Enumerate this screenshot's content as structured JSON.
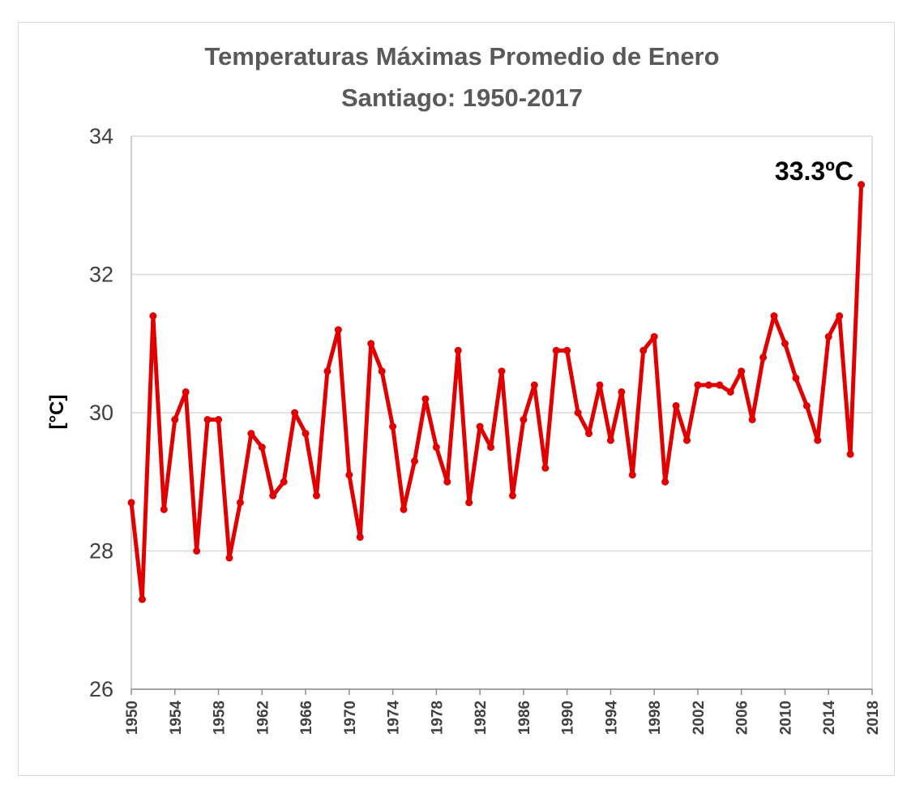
{
  "chart_data": {
    "type": "line",
    "title_line1": "Temperaturas Máximas Promedio de Enero",
    "title_line2": "Santiago: 1950-2017",
    "ylabel": "[°C]",
    "xlabel": "",
    "ylim": [
      26,
      34
    ],
    "yticks": [
      "26",
      "28",
      "30",
      "32",
      "34"
    ],
    "xlim": [
      1950,
      2018
    ],
    "xticks": [
      "1950",
      "1954",
      "1958",
      "1962",
      "1966",
      "1970",
      "1974",
      "1978",
      "1982",
      "1986",
      "1990",
      "1994",
      "1998",
      "2002",
      "2006",
      "2010",
      "2014",
      "2018"
    ],
    "grid": true,
    "legend": "none",
    "color": "#e00000",
    "annotation": "33.3ºC",
    "x": [
      1950,
      1951,
      1952,
      1953,
      1954,
      1955,
      1956,
      1957,
      1958,
      1959,
      1960,
      1961,
      1962,
      1963,
      1964,
      1965,
      1966,
      1967,
      1968,
      1969,
      1970,
      1971,
      1972,
      1973,
      1974,
      1975,
      1976,
      1977,
      1978,
      1979,
      1980,
      1981,
      1982,
      1983,
      1984,
      1985,
      1986,
      1987,
      1988,
      1989,
      1990,
      1991,
      1992,
      1993,
      1994,
      1995,
      1996,
      1997,
      1998,
      1999,
      2000,
      2001,
      2002,
      2003,
      2004,
      2005,
      2006,
      2007,
      2008,
      2009,
      2010,
      2011,
      2012,
      2013,
      2014,
      2015,
      2016,
      2017
    ],
    "values": [
      28.7,
      27.3,
      31.4,
      28.6,
      29.9,
      30.3,
      28.0,
      29.9,
      29.9,
      27.9,
      28.7,
      29.7,
      29.5,
      28.8,
      29.0,
      30.0,
      29.7,
      28.8,
      30.6,
      31.2,
      29.1,
      28.2,
      31.0,
      30.6,
      29.8,
      28.6,
      29.3,
      30.2,
      29.5,
      29.0,
      30.9,
      28.7,
      29.8,
      29.5,
      30.6,
      28.8,
      29.9,
      30.4,
      29.2,
      30.9,
      30.9,
      30.0,
      29.7,
      30.4,
      29.6,
      30.3,
      29.1,
      30.9,
      31.1,
      29.0,
      30.1,
      29.6,
      30.4,
      30.4,
      30.4,
      30.3,
      30.6,
      29.9,
      30.8,
      31.4,
      31.0,
      30.5,
      30.1,
      29.6,
      31.1,
      31.4,
      29.4,
      33.3
    ]
  }
}
